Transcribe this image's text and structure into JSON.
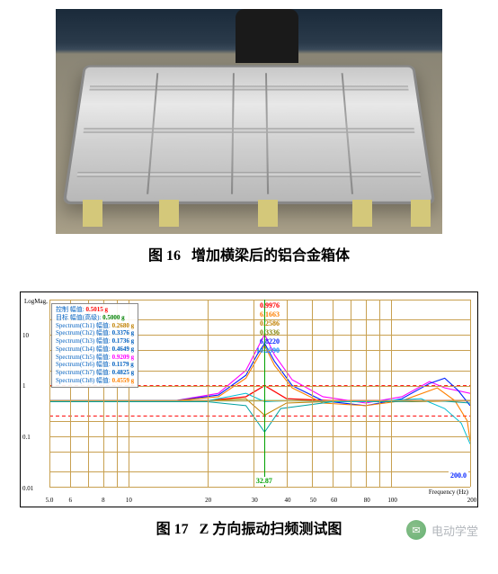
{
  "figure16": {
    "caption_num": "图 16",
    "caption_text": "增加横梁后的铝合金箱体"
  },
  "figure17": {
    "caption_num": "图 17",
    "caption_text": "Z 方向振动扫频测试图",
    "chart": {
      "type": "line",
      "y_axis_label": "LogMag, g",
      "x_axis_label": "Frequency (Hz)",
      "xlim": [
        5,
        200
      ],
      "ylim": [
        0.01,
        50
      ],
      "scale": "log-log",
      "y_ticks": [
        0.01,
        0.1,
        1.0,
        10
      ],
      "x_ticks": [
        5,
        6,
        8,
        10,
        20,
        30,
        40,
        50,
        60,
        80,
        100,
        200
      ],
      "grid_color": "#c8a050",
      "background_color": "#ffffff",
      "cursor_freq": 32.87,
      "cursor_end": 200.0,
      "legend": [
        {
          "label": "控制 幅值",
          "value": "0.5015 g",
          "color": "#ff0000"
        },
        {
          "label": "目标 幅值(高级)",
          "value": "0.5000 g",
          "color": "#008000"
        },
        {
          "label": "Spectrum(Ch1) 幅值",
          "value": "0.2680 g",
          "color": "#c08000"
        },
        {
          "label": "Spectrum(Ch2) 幅值",
          "value": "0.3376 g",
          "color": "#0060c0"
        },
        {
          "label": "Spectrum(Ch3) 幅值",
          "value": "0.1736 g",
          "color": "#0060c0"
        },
        {
          "label": "Spectrum(Ch4) 幅值",
          "value": "0.4649 g",
          "color": "#0060c0"
        },
        {
          "label": "Spectrum(Ch5) 幅值",
          "value": "0.9209 g",
          "color": "#ff00ff"
        },
        {
          "label": "Spectrum(Ch6) 幅值",
          "value": "0.1179 g",
          "color": "#0060c0"
        },
        {
          "label": "Spectrum(Ch7) 幅值",
          "value": "0.4825 g",
          "color": "#0060c0"
        },
        {
          "label": "Spectrum(Ch8) 幅值",
          "value": "0.4559 g",
          "color": "#ff8000"
        }
      ],
      "peak_values": [
        {
          "value": "0.9976",
          "color": "#ff0000"
        },
        {
          "value": "6.1663",
          "color": "#ff8000"
        },
        {
          "value": "0.2586",
          "color": "#c08000"
        },
        {
          "value": "0.3336",
          "color": "#808000"
        },
        {
          "value": "6.8220",
          "color": "#0020ff"
        },
        {
          "value": "10.2590",
          "color": "#0080ff"
        }
      ],
      "series": [
        {
          "name": "limit-upper",
          "color": "#ff0000",
          "width": 1,
          "dash": "4 3",
          "points": [
            [
              5,
              1.0
            ],
            [
              200,
              1.0
            ]
          ]
        },
        {
          "name": "limit-lower",
          "color": "#ff0000",
          "width": 1,
          "dash": "4 3",
          "points": [
            [
              5,
              0.25
            ],
            [
              200,
              0.25
            ]
          ]
        },
        {
          "name": "target",
          "color": "#00a000",
          "width": 1.3,
          "points": [
            [
              5,
              0.5
            ],
            [
              200,
              0.5
            ]
          ]
        },
        {
          "name": "control",
          "color": "#ff0000",
          "width": 1.3,
          "points": [
            [
              5,
              0.5
            ],
            [
              20,
              0.5
            ],
            [
              28,
              0.6
            ],
            [
              33,
              1.0
            ],
            [
              40,
              0.55
            ],
            [
              60,
              0.5
            ],
            [
              100,
              0.5
            ],
            [
              200,
              0.5
            ]
          ]
        },
        {
          "name": "ch5",
          "color": "#ff00ff",
          "width": 1.1,
          "points": [
            [
              5,
              0.5
            ],
            [
              15,
              0.5
            ],
            [
              22,
              0.7
            ],
            [
              28,
              2.0
            ],
            [
              31,
              5.5
            ],
            [
              33,
              10.3
            ],
            [
              36,
              4.0
            ],
            [
              42,
              1.3
            ],
            [
              55,
              0.6
            ],
            [
              80,
              0.45
            ],
            [
              110,
              0.6
            ],
            [
              140,
              1.2
            ],
            [
              160,
              0.9
            ],
            [
              200,
              0.7
            ]
          ]
        },
        {
          "name": "ch-blue1",
          "color": "#0020ff",
          "width": 1.1,
          "points": [
            [
              5,
              0.5
            ],
            [
              15,
              0.5
            ],
            [
              22,
              0.65
            ],
            [
              28,
              1.6
            ],
            [
              31,
              4.2
            ],
            [
              33,
              6.8
            ],
            [
              36,
              3.0
            ],
            [
              42,
              1.0
            ],
            [
              55,
              0.5
            ],
            [
              80,
              0.4
            ],
            [
              110,
              0.55
            ],
            [
              140,
              1.1
            ],
            [
              160,
              1.4
            ],
            [
              180,
              0.8
            ],
            [
              200,
              0.4
            ]
          ]
        },
        {
          "name": "ch-orange",
          "color": "#ff8000",
          "width": 1.1,
          "points": [
            [
              5,
              0.5
            ],
            [
              15,
              0.5
            ],
            [
              22,
              0.6
            ],
            [
              28,
              1.4
            ],
            [
              31,
              3.5
            ],
            [
              33,
              6.2
            ],
            [
              36,
              2.5
            ],
            [
              42,
              0.9
            ],
            [
              55,
              0.45
            ],
            [
              80,
              0.4
            ],
            [
              110,
              0.5
            ],
            [
              150,
              0.9
            ],
            [
              175,
              0.5
            ],
            [
              195,
              0.2
            ],
            [
              200,
              0.08
            ]
          ]
        },
        {
          "name": "ch-tan",
          "color": "#c08000",
          "width": 1.0,
          "points": [
            [
              5,
              0.5
            ],
            [
              20,
              0.5
            ],
            [
              28,
              0.55
            ],
            [
              33,
              0.26
            ],
            [
              40,
              0.45
            ],
            [
              70,
              0.5
            ],
            [
              120,
              0.48
            ],
            [
              200,
              0.5
            ]
          ]
        },
        {
          "name": "ch6",
          "color": "#00a0a0",
          "width": 1.0,
          "points": [
            [
              5,
              0.48
            ],
            [
              20,
              0.48
            ],
            [
              28,
              0.4
            ],
            [
              33,
              0.12
            ],
            [
              38,
              0.35
            ],
            [
              60,
              0.48
            ],
            [
              100,
              0.48
            ],
            [
              150,
              0.5
            ],
            [
              200,
              0.45
            ]
          ]
        },
        {
          "name": "ch-cyan2",
          "color": "#00bcd4",
          "width": 1.0,
          "points": [
            [
              5,
              0.5
            ],
            [
              20,
              0.5
            ],
            [
              28,
              0.7
            ],
            [
              33,
              0.48
            ],
            [
              40,
              0.5
            ],
            [
              80,
              0.48
            ],
            [
              130,
              0.55
            ],
            [
              160,
              0.35
            ],
            [
              185,
              0.18
            ],
            [
              200,
              0.07
            ]
          ]
        }
      ]
    }
  },
  "watermark": {
    "icon_glyph": "✉",
    "text": "电动学堂"
  }
}
